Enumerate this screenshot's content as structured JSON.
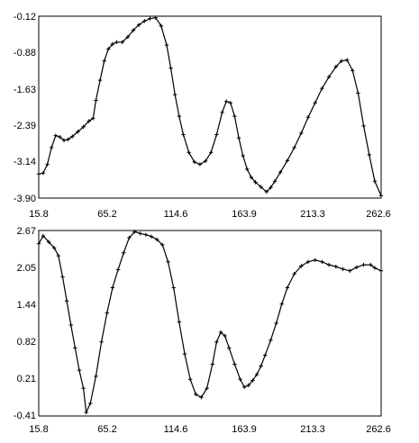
{
  "chart_data": [
    {
      "type": "line",
      "title": "",
      "xlabel": "",
      "ylabel": "",
      "x_ticks": [
        "15.8",
        "65.2",
        "114.6",
        "163.9",
        "213.3",
        "262.6"
      ],
      "y_ticks": [
        "-0.12",
        "-0.88",
        "-1.63",
        "-2.39",
        "-3.14",
        "-3.90"
      ],
      "xlim": [
        15.8,
        262.6
      ],
      "ylim": [
        -3.9,
        -0.12
      ],
      "grid": false,
      "marker": "+",
      "series": [
        {
          "x": [
            15.8,
            19,
            22,
            25,
            28,
            31,
            34,
            37,
            40,
            44,
            48,
            52,
            55,
            57,
            60,
            63,
            66,
            69,
            72,
            76,
            80,
            84,
            88,
            92,
            96,
            100,
            104,
            108,
            111,
            114,
            117,
            120,
            124,
            128,
            132,
            136,
            140,
            144,
            148,
            151,
            154,
            157,
            160,
            163,
            166,
            169,
            172,
            176,
            180,
            183,
            186,
            190,
            195,
            200,
            205,
            210,
            215,
            220,
            225,
            230,
            234,
            238,
            242,
            246,
            250,
            254,
            258,
            262.6
          ],
          "y": [
            -3.4,
            -3.38,
            -3.2,
            -2.85,
            -2.6,
            -2.63,
            -2.7,
            -2.68,
            -2.62,
            -2.52,
            -2.42,
            -2.3,
            -2.24,
            -1.87,
            -1.45,
            -1.05,
            -0.8,
            -0.7,
            -0.66,
            -0.66,
            -0.55,
            -0.41,
            -0.3,
            -0.22,
            -0.17,
            -0.15,
            -0.32,
            -0.72,
            -1.2,
            -1.75,
            -2.2,
            -2.58,
            -2.95,
            -3.15,
            -3.2,
            -3.13,
            -2.95,
            -2.58,
            -2.12,
            -1.89,
            -1.92,
            -2.2,
            -2.65,
            -3.02,
            -3.3,
            -3.47,
            -3.57,
            -3.67,
            -3.77,
            -3.68,
            -3.55,
            -3.36,
            -3.12,
            -2.85,
            -2.55,
            -2.22,
            -1.92,
            -1.62,
            -1.38,
            -1.17,
            -1.05,
            -1.03,
            -1.25,
            -1.72,
            -2.4,
            -3.0,
            -3.55,
            -3.85
          ]
        }
      ]
    },
    {
      "type": "line",
      "title": "",
      "xlabel": "",
      "ylabel": "",
      "x_ticks": [
        "15.8",
        "65.2",
        "114.6",
        "163.9",
        "213.3",
        "262.6"
      ],
      "y_ticks": [
        "2.67",
        "2.05",
        "1.44",
        "0.82",
        "0.21",
        "-0.41"
      ],
      "xlim": [
        15.8,
        262.6
      ],
      "ylim": [
        -0.41,
        2.67
      ],
      "grid": false,
      "marker": "+",
      "series": [
        {
          "x": [
            15.8,
            19,
            23,
            27,
            30,
            33,
            36,
            39,
            42,
            45,
            48,
            50,
            53,
            57,
            61,
            65,
            69,
            73,
            77,
            81,
            85,
            89,
            93,
            97,
            101,
            105,
            109,
            113,
            117,
            121,
            125,
            129,
            133,
            137,
            141,
            144,
            147,
            150,
            153,
            157,
            161,
            164,
            167,
            170,
            173,
            176,
            179,
            183,
            187,
            191,
            195,
            200,
            205,
            210,
            215,
            220,
            225,
            230,
            235,
            240,
            245,
            250,
            255,
            258,
            262.6
          ],
          "y": [
            2.45,
            2.58,
            2.48,
            2.38,
            2.25,
            1.9,
            1.5,
            1.1,
            0.72,
            0.35,
            0.05,
            -0.35,
            -0.2,
            0.25,
            0.82,
            1.3,
            1.72,
            2.02,
            2.3,
            2.55,
            2.65,
            2.62,
            2.6,
            2.57,
            2.52,
            2.43,
            2.15,
            1.72,
            1.15,
            0.62,
            0.2,
            -0.05,
            -0.1,
            0.05,
            0.45,
            0.82,
            0.98,
            0.92,
            0.72,
            0.45,
            0.2,
            0.07,
            0.1,
            0.18,
            0.28,
            0.42,
            0.6,
            0.85,
            1.13,
            1.45,
            1.72,
            1.95,
            2.08,
            2.15,
            2.18,
            2.15,
            2.1,
            2.07,
            2.03,
            2.0,
            2.06,
            2.1,
            2.1,
            2.05,
            2.0
          ]
        }
      ]
    }
  ]
}
